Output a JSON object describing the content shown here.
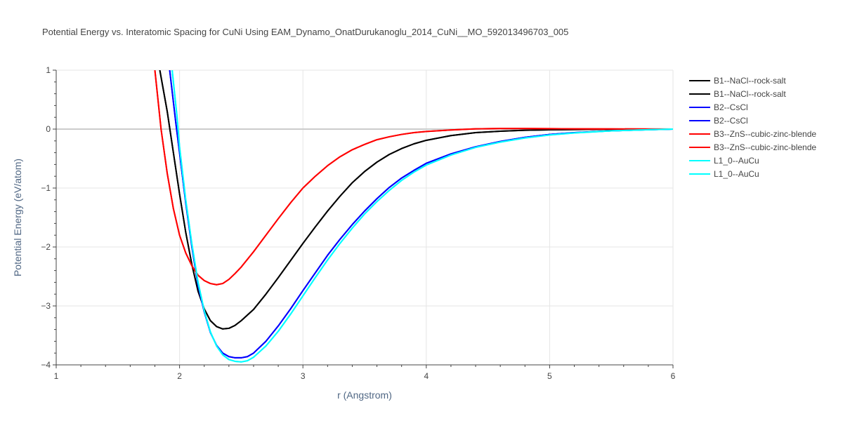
{
  "chart_data": {
    "type": "line",
    "title": "Potential Energy vs. Interatomic Spacing for CuNi Using EAM_Dynamo_OnatDurukanoglu_2014_CuNi__MO_592013496703_005",
    "xlabel": "r (Angstrom)",
    "ylabel": "Potential Energy (eV/atom)",
    "xlim": [
      1,
      6
    ],
    "ylim": [
      -4,
      1
    ],
    "xticks": [
      1,
      2,
      3,
      4,
      5,
      6
    ],
    "yticks": [
      1,
      0,
      -1,
      -2,
      -3,
      -4
    ],
    "ytick_labels": [
      "1",
      "0",
      "−1",
      "−2",
      "−3",
      "−4"
    ],
    "grid": true,
    "legend_position": "right",
    "series": [
      {
        "name": "B1--NaCl--rock-salt",
        "color": "#000000",
        "x": [
          1.84,
          1.9,
          1.95,
          2.0,
          2.05,
          2.1,
          2.15,
          2.2,
          2.25,
          2.3,
          2.35,
          2.4,
          2.45,
          2.5,
          2.6,
          2.7,
          2.8,
          2.9,
          3.0,
          3.1,
          3.2,
          3.3,
          3.4,
          3.5,
          3.6,
          3.7,
          3.8,
          3.9,
          4.0,
          4.2,
          4.4,
          4.6,
          4.8,
          5.0,
          5.2,
          5.5,
          5.8,
          6.0
        ],
        "y": [
          1.0,
          0.3,
          -0.4,
          -1.1,
          -1.75,
          -2.3,
          -2.75,
          -3.05,
          -3.25,
          -3.35,
          -3.39,
          -3.38,
          -3.33,
          -3.25,
          -3.06,
          -2.8,
          -2.52,
          -2.23,
          -1.94,
          -1.66,
          -1.39,
          -1.14,
          -0.91,
          -0.72,
          -0.56,
          -0.43,
          -0.33,
          -0.25,
          -0.19,
          -0.11,
          -0.06,
          -0.035,
          -0.02,
          -0.012,
          -0.007,
          -0.003,
          -0.001,
          0.0
        ]
      },
      {
        "name": "B1--NaCl--rock-salt",
        "color": "#000000",
        "x": [
          1.84,
          1.9,
          1.95,
          2.0,
          2.05,
          2.1,
          2.15,
          2.2,
          2.25,
          2.3,
          2.35,
          2.4,
          2.45,
          2.5,
          2.6,
          2.7,
          2.8,
          2.9,
          3.0,
          3.1,
          3.2,
          3.3,
          3.4,
          3.5,
          3.6,
          3.7,
          3.8,
          3.9,
          4.0,
          4.2,
          4.4,
          4.6,
          4.8,
          5.0,
          5.2,
          5.5,
          5.8,
          6.0
        ],
        "y": [
          1.0,
          0.3,
          -0.4,
          -1.1,
          -1.75,
          -2.3,
          -2.75,
          -3.05,
          -3.25,
          -3.35,
          -3.39,
          -3.38,
          -3.33,
          -3.25,
          -3.06,
          -2.8,
          -2.52,
          -2.23,
          -1.94,
          -1.66,
          -1.39,
          -1.14,
          -0.91,
          -0.72,
          -0.56,
          -0.43,
          -0.33,
          -0.25,
          -0.19,
          -0.11,
          -0.06,
          -0.035,
          -0.02,
          -0.012,
          -0.007,
          -0.003,
          -0.001,
          0.0
        ]
      },
      {
        "name": "B2--CsCl",
        "color": "#0000ff",
        "x": [
          1.92,
          1.97,
          2.0,
          2.05,
          2.1,
          2.15,
          2.2,
          2.25,
          2.3,
          2.35,
          2.4,
          2.45,
          2.5,
          2.55,
          2.6,
          2.7,
          2.8,
          2.9,
          3.0,
          3.1,
          3.2,
          3.3,
          3.4,
          3.5,
          3.6,
          3.7,
          3.8,
          3.9,
          4.0,
          4.2,
          4.4,
          4.6,
          4.8,
          5.0,
          5.2,
          5.5,
          5.8,
          6.0
        ],
        "y": [
          1.0,
          0.1,
          -0.4,
          -1.25,
          -2.0,
          -2.65,
          -3.1,
          -3.45,
          -3.67,
          -3.8,
          -3.86,
          -3.88,
          -3.88,
          -3.86,
          -3.8,
          -3.6,
          -3.34,
          -3.05,
          -2.74,
          -2.44,
          -2.14,
          -1.87,
          -1.62,
          -1.39,
          -1.18,
          -0.99,
          -0.83,
          -0.7,
          -0.58,
          -0.42,
          -0.3,
          -0.21,
          -0.14,
          -0.09,
          -0.06,
          -0.03,
          -0.01,
          0.0
        ]
      },
      {
        "name": "B2--CsCl",
        "color": "#0000ff",
        "x": [
          1.92,
          1.97,
          2.0,
          2.05,
          2.1,
          2.15,
          2.2,
          2.25,
          2.3,
          2.35,
          2.4,
          2.45,
          2.5,
          2.55,
          2.6,
          2.7,
          2.8,
          2.9,
          3.0,
          3.1,
          3.2,
          3.3,
          3.4,
          3.5,
          3.6,
          3.7,
          3.8,
          3.9,
          4.0,
          4.2,
          4.4,
          4.6,
          4.8,
          5.0,
          5.2,
          5.5,
          5.8,
          6.0
        ],
        "y": [
          1.0,
          0.1,
          -0.4,
          -1.25,
          -2.0,
          -2.65,
          -3.1,
          -3.45,
          -3.67,
          -3.8,
          -3.86,
          -3.88,
          -3.88,
          -3.86,
          -3.8,
          -3.6,
          -3.34,
          -3.05,
          -2.74,
          -2.44,
          -2.14,
          -1.87,
          -1.62,
          -1.39,
          -1.18,
          -0.99,
          -0.83,
          -0.7,
          -0.58,
          -0.42,
          -0.3,
          -0.21,
          -0.14,
          -0.09,
          -0.06,
          -0.03,
          -0.01,
          0.0
        ]
      },
      {
        "name": "B3--ZnS--cubic-zinc-blende",
        "color": "#ff0000",
        "x": [
          1.8,
          1.85,
          1.9,
          1.95,
          2.0,
          2.05,
          2.1,
          2.15,
          2.2,
          2.25,
          2.3,
          2.35,
          2.4,
          2.45,
          2.5,
          2.6,
          2.7,
          2.8,
          2.9,
          3.0,
          3.1,
          3.2,
          3.3,
          3.4,
          3.5,
          3.6,
          3.7,
          3.8,
          3.9,
          4.0,
          4.2,
          4.4,
          4.6,
          4.8,
          5.0,
          5.2,
          5.5,
          5.8,
          6.0
        ],
        "y": [
          1.0,
          0.0,
          -0.75,
          -1.35,
          -1.8,
          -2.1,
          -2.32,
          -2.48,
          -2.57,
          -2.62,
          -2.64,
          -2.62,
          -2.55,
          -2.45,
          -2.34,
          -2.08,
          -1.8,
          -1.52,
          -1.25,
          -1.0,
          -0.8,
          -0.62,
          -0.47,
          -0.35,
          -0.26,
          -0.18,
          -0.13,
          -0.09,
          -0.06,
          -0.04,
          -0.015,
          0.005,
          0.01,
          0.01,
          0.008,
          0.005,
          0.003,
          0.001,
          0.0
        ]
      },
      {
        "name": "B3--ZnS--cubic-zinc-blende",
        "color": "#ff0000",
        "x": [
          1.8,
          1.85,
          1.9,
          1.95,
          2.0,
          2.05,
          2.1,
          2.15,
          2.2,
          2.25,
          2.3,
          2.35,
          2.4,
          2.45,
          2.5,
          2.6,
          2.7,
          2.8,
          2.9,
          3.0,
          3.1,
          3.2,
          3.3,
          3.4,
          3.5,
          3.6,
          3.7,
          3.8,
          3.9,
          4.0,
          4.2,
          4.4,
          4.6,
          4.8,
          5.0,
          5.2,
          5.5,
          5.8,
          6.0
        ],
        "y": [
          1.0,
          0.0,
          -0.75,
          -1.35,
          -1.8,
          -2.1,
          -2.32,
          -2.48,
          -2.57,
          -2.62,
          -2.64,
          -2.62,
          -2.55,
          -2.45,
          -2.34,
          -2.08,
          -1.8,
          -1.52,
          -1.25,
          -1.0,
          -0.8,
          -0.62,
          -0.47,
          -0.35,
          -0.26,
          -0.18,
          -0.13,
          -0.09,
          -0.06,
          -0.04,
          -0.015,
          0.005,
          0.01,
          0.01,
          0.008,
          0.005,
          0.003,
          0.001,
          0.0
        ]
      },
      {
        "name": "L1_0--AuCu",
        "color": "#00ffff",
        "x": [
          1.94,
          1.98,
          2.0,
          2.05,
          2.1,
          2.15,
          2.2,
          2.25,
          2.3,
          2.35,
          2.4,
          2.45,
          2.5,
          2.55,
          2.6,
          2.7,
          2.8,
          2.9,
          3.0,
          3.1,
          3.2,
          3.3,
          3.4,
          3.5,
          3.6,
          3.7,
          3.8,
          3.9,
          4.0,
          4.2,
          4.4,
          4.6,
          4.8,
          5.0,
          5.2,
          5.5,
          5.8,
          6.0
        ],
        "y": [
          1.0,
          0.2,
          -0.3,
          -1.2,
          -1.95,
          -2.6,
          -3.08,
          -3.44,
          -3.68,
          -3.83,
          -3.91,
          -3.94,
          -3.95,
          -3.93,
          -3.87,
          -3.68,
          -3.43,
          -3.14,
          -2.83,
          -2.52,
          -2.22,
          -1.94,
          -1.68,
          -1.44,
          -1.23,
          -1.04,
          -0.87,
          -0.73,
          -0.61,
          -0.44,
          -0.31,
          -0.22,
          -0.15,
          -0.1,
          -0.065,
          -0.03,
          -0.01,
          0.0
        ]
      },
      {
        "name": "L1_0--AuCu",
        "color": "#00ffff",
        "x": [
          1.94,
          1.98,
          2.0,
          2.05,
          2.1,
          2.15,
          2.2,
          2.25,
          2.3,
          2.35,
          2.4,
          2.45,
          2.5,
          2.55,
          2.6,
          2.7,
          2.8,
          2.9,
          3.0,
          3.1,
          3.2,
          3.3,
          3.4,
          3.5,
          3.6,
          3.7,
          3.8,
          3.9,
          4.0,
          4.2,
          4.4,
          4.6,
          4.8,
          5.0,
          5.2,
          5.5,
          5.8,
          6.0
        ],
        "y": [
          1.0,
          0.2,
          -0.3,
          -1.2,
          -1.95,
          -2.6,
          -3.08,
          -3.44,
          -3.68,
          -3.83,
          -3.91,
          -3.94,
          -3.95,
          -3.93,
          -3.87,
          -3.68,
          -3.43,
          -3.14,
          -2.83,
          -2.52,
          -2.22,
          -1.94,
          -1.68,
          -1.44,
          -1.23,
          -1.04,
          -0.87,
          -0.73,
          -0.61,
          -0.44,
          -0.31,
          -0.22,
          -0.15,
          -0.1,
          -0.065,
          -0.03,
          -0.01,
          0.0
        ]
      }
    ]
  }
}
